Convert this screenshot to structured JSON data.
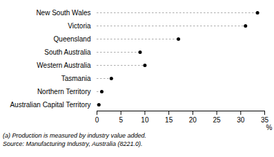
{
  "chart_data": {
    "type": "dot",
    "categories": [
      "Australian Capital Territory",
      "Northern Territory",
      "Tasmania",
      "Western Australia",
      "South Australia",
      "Queensland",
      "Victoria",
      "New South Wales"
    ],
    "values": [
      0.4,
      1.0,
      3.0,
      10.0,
      9.0,
      17.0,
      31.0,
      33.5
    ],
    "xlabel": "%",
    "xlim": [
      0,
      35
    ],
    "xticks": [
      0,
      5,
      10,
      15,
      20,
      25,
      30,
      35
    ],
    "color": "#000000",
    "line_style": "dashed",
    "grid": false,
    "annotations": [
      "(a) Production is measured by industry value added.",
      "Source: Manufacturing Industry, Australia (8221.0)."
    ]
  }
}
